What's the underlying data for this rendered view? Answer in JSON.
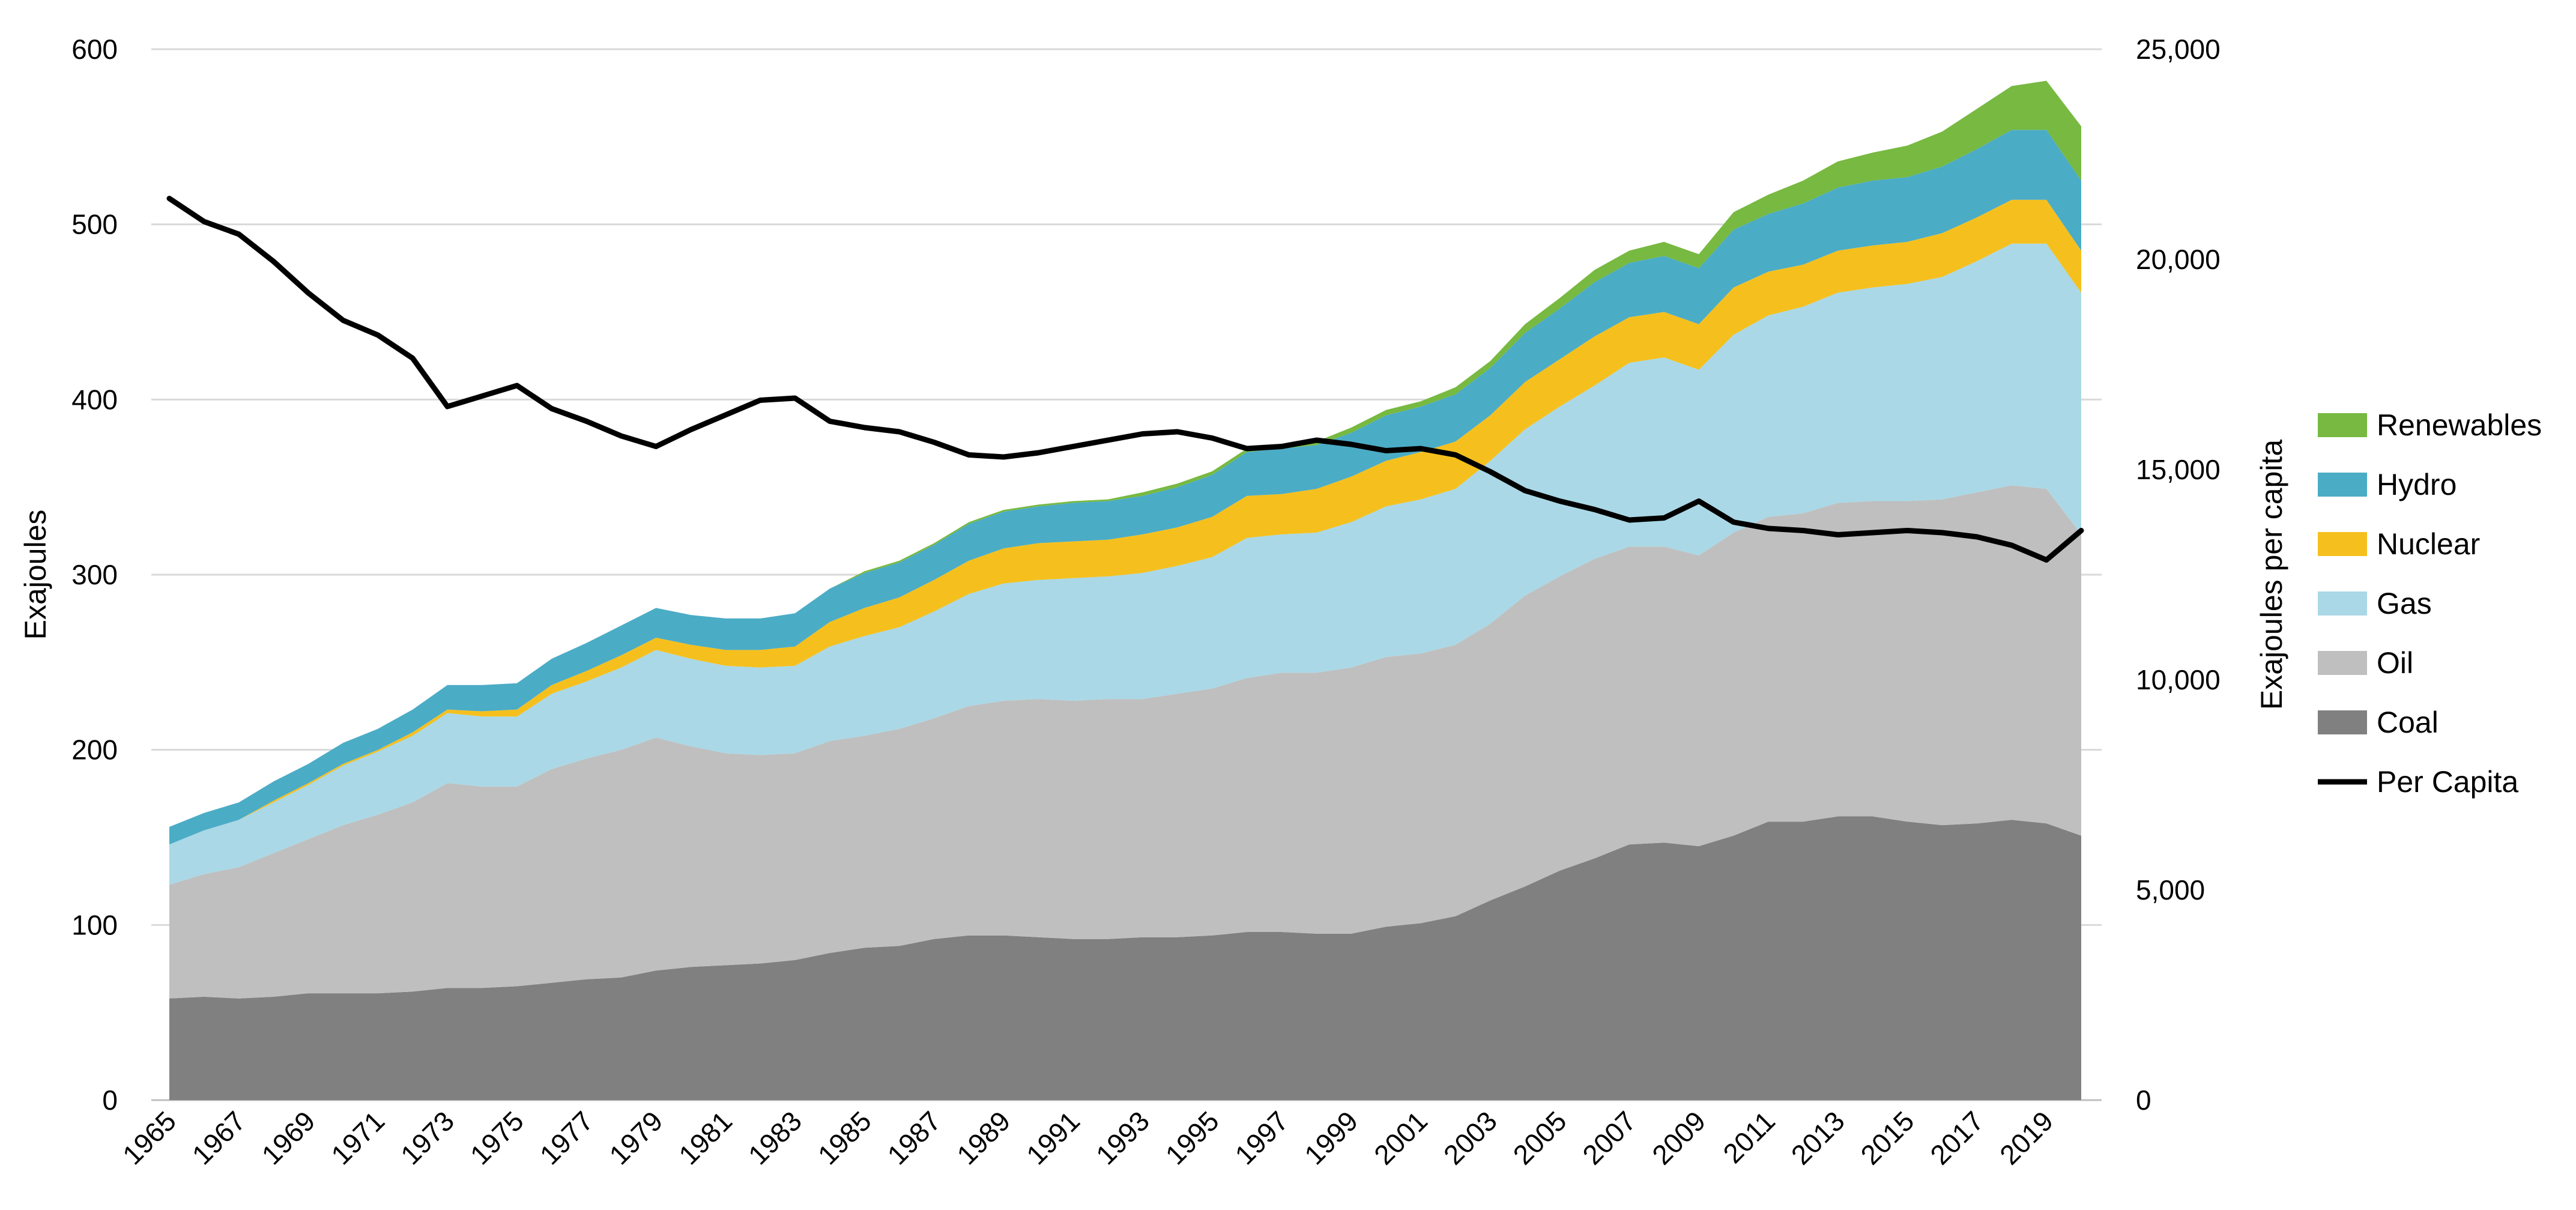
{
  "chart_data": {
    "type": "area",
    "stacked": true,
    "title": "",
    "xlabel": "",
    "ylabel": "Exajoules",
    "y2label": "Exajoules per capita",
    "ylim": [
      0,
      600
    ],
    "y2lim": [
      0,
      25000
    ],
    "yticks": [
      "0",
      "100",
      "200",
      "300",
      "400",
      "500",
      "600"
    ],
    "y2ticks": [
      "0",
      "5,000",
      "10,000",
      "15,000",
      "20,000",
      "25,000"
    ],
    "grid": true,
    "legend_position": "right",
    "x": [
      1965,
      1966,
      1967,
      1968,
      1969,
      1970,
      1971,
      1972,
      1973,
      1974,
      1975,
      1976,
      1977,
      1978,
      1979,
      1980,
      1981,
      1982,
      1983,
      1984,
      1985,
      1986,
      1987,
      1988,
      1989,
      1990,
      1991,
      1992,
      1993,
      1994,
      1995,
      1996,
      1997,
      1998,
      1999,
      2000,
      2001,
      2002,
      2003,
      2004,
      2005,
      2006,
      2007,
      2008,
      2009,
      2010,
      2011,
      2012,
      2013,
      2014,
      2015,
      2016,
      2017,
      2018,
      2019,
      2020
    ],
    "xtick_labels": [
      "1965",
      "1967",
      "1969",
      "1971",
      "1973",
      "1975",
      "1977",
      "1979",
      "1981",
      "1983",
      "1985",
      "1987",
      "1989",
      "1991",
      "1993",
      "1995",
      "1997",
      "1999",
      "2001",
      "2003",
      "2005",
      "2007",
      "2009",
      "2011",
      "2013",
      "2015",
      "2017",
      "2019"
    ],
    "series": [
      {
        "name": "Coal",
        "color": "#808080",
        "values": [
          58,
          59,
          58,
          59,
          61,
          61,
          61,
          62,
          64,
          64,
          65,
          67,
          69,
          70,
          74,
          76,
          77,
          78,
          80,
          84,
          87,
          88,
          92,
          94,
          94,
          93,
          92,
          92,
          93,
          93,
          94,
          96,
          96,
          95,
          95,
          99,
          101,
          105,
          114,
          122,
          131,
          138,
          146,
          147,
          145,
          151,
          159,
          159,
          162,
          162,
          159,
          157,
          158,
          160,
          158,
          151
        ]
      },
      {
        "name": "Oil",
        "color": "#bfbfbf",
        "values": [
          65,
          70,
          75,
          82,
          88,
          96,
          102,
          108,
          117,
          115,
          114,
          122,
          126,
          130,
          133,
          126,
          121,
          119,
          118,
          121,
          121,
          124,
          126,
          131,
          134,
          136,
          136,
          137,
          136,
          139,
          141,
          145,
          148,
          149,
          152,
          154,
          154,
          155,
          158,
          166,
          168,
          171,
          170,
          169,
          166,
          173,
          174,
          176,
          179,
          180,
          183,
          186,
          189,
          191,
          191,
          172
        ]
      },
      {
        "name": "Gas",
        "color": "#aad8e6",
        "values": [
          23,
          25,
          27,
          29,
          31,
          34,
          36,
          38,
          40,
          40,
          40,
          43,
          44,
          47,
          50,
          50,
          50,
          50,
          50,
          54,
          57,
          58,
          61,
          64,
          67,
          68,
          70,
          70,
          72,
          73,
          75,
          80,
          79,
          80,
          83,
          86,
          88,
          89,
          93,
          95,
          97,
          99,
          105,
          108,
          106,
          113,
          115,
          118,
          120,
          122,
          124,
          127,
          132,
          138,
          140,
          138
        ]
      },
      {
        "name": "Nuclear",
        "color": "#f5c01e",
        "values": [
          0,
          0,
          0,
          1,
          1,
          1,
          1,
          2,
          2,
          3,
          4,
          5,
          6,
          7,
          7,
          8,
          9,
          10,
          11,
          14,
          16,
          17,
          18,
          19,
          20,
          21,
          21,
          21,
          22,
          22,
          23,
          24,
          23,
          25,
          26,
          26,
          27,
          27,
          26,
          27,
          27,
          28,
          26,
          26,
          26,
          27,
          25,
          24,
          24,
          24,
          24,
          25,
          25,
          25,
          25,
          24
        ]
      },
      {
        "name": "Hydro",
        "color": "#4bacc6",
        "values": [
          10,
          10,
          10,
          11,
          11,
          12,
          12,
          13,
          14,
          15,
          15,
          15,
          16,
          17,
          17,
          17,
          18,
          18,
          19,
          19,
          20,
          20,
          20,
          21,
          21,
          21,
          22,
          22,
          22,
          23,
          24,
          25,
          26,
          25,
          25,
          26,
          26,
          27,
          27,
          28,
          29,
          31,
          31,
          32,
          32,
          33,
          33,
          35,
          36,
          37,
          37,
          38,
          39,
          40,
          40,
          40
        ]
      },
      {
        "name": "Renewables",
        "color": "#77b941",
        "values": [
          0,
          0,
          0,
          0,
          0,
          0,
          0,
          0,
          0,
          0,
          0,
          0,
          0,
          0,
          0,
          0,
          0,
          0,
          0,
          0,
          1,
          1,
          1,
          1,
          1,
          1,
          1,
          1,
          2,
          2,
          2,
          2,
          2,
          2,
          3,
          3,
          3,
          4,
          4,
          5,
          6,
          7,
          7,
          8,
          8,
          10,
          11,
          13,
          15,
          16,
          18,
          20,
          23,
          25,
          28,
          31
        ]
      },
      {
        "name": "Per Capita",
        "color": "#000000",
        "axis": "right",
        "line": true,
        "values": [
          21450,
          20900,
          20600,
          19950,
          19200,
          18550,
          18200,
          17650,
          16500,
          16750,
          17000,
          16450,
          16150,
          15800,
          15550,
          15950,
          16300,
          16650,
          16700,
          16150,
          16000,
          15900,
          15650,
          15350,
          15300,
          15400,
          15550,
          15700,
          15850,
          15900,
          15750,
          15500,
          15550,
          15700,
          15600,
          15450,
          15500,
          15350,
          14950,
          14500,
          14250,
          14050,
          13800,
          13850,
          14250,
          13750,
          13600,
          13550,
          13450,
          13500,
          13550,
          13500,
          13400,
          13200,
          12850,
          13550
        ]
      }
    ]
  }
}
